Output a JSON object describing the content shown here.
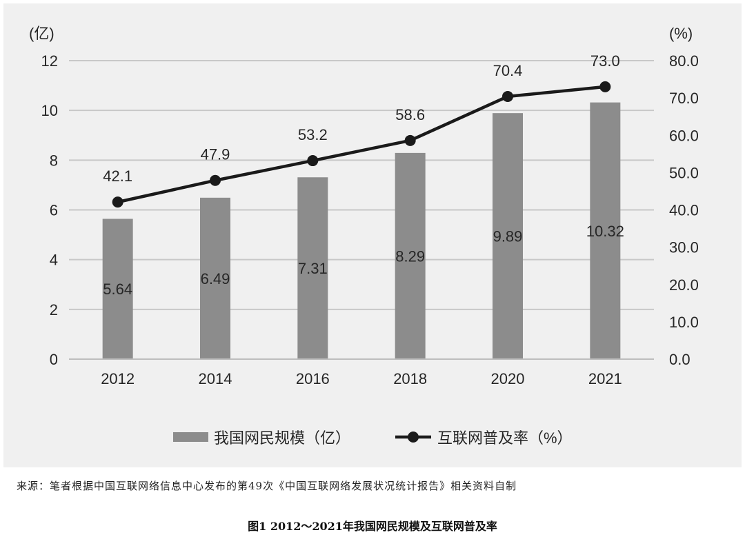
{
  "chart_data": {
    "type": "bar",
    "categories": [
      "2012",
      "2014",
      "2016",
      "2018",
      "2020",
      "2021"
    ],
    "series": [
      {
        "name": "我国网民规模（亿）",
        "type": "bar",
        "axis": "left",
        "values": [
          5.64,
          6.49,
          7.31,
          8.29,
          9.89,
          10.32
        ],
        "labels": [
          "5.64",
          "6.49",
          "7.31",
          "8.29",
          "9.89",
          "10.32"
        ]
      },
      {
        "name": "互联网普及率（%）",
        "type": "line",
        "axis": "right",
        "values": [
          42.1,
          47.9,
          53.2,
          58.6,
          70.4,
          73.0
        ],
        "labels": [
          "42.1",
          "47.9",
          "53.2",
          "58.6",
          "70.4",
          "73.0"
        ]
      }
    ],
    "y_left": {
      "unit": "(亿)",
      "range": [
        0,
        12
      ],
      "ticks": [
        "0",
        "2",
        "4",
        "6",
        "8",
        "10",
        "12"
      ]
    },
    "y_right": {
      "unit": "(%)",
      "range": [
        0,
        80
      ],
      "ticks": [
        "0.0",
        "10.0",
        "20.0",
        "30.0",
        "40.0",
        "50.0",
        "60.0",
        "70.0",
        "80.0"
      ]
    },
    "grid": true,
    "legend_position": "bottom",
    "colors": {
      "bar": "#8c8c8c",
      "line": "#1a1a1a",
      "plot_background": "#f0f0f0",
      "grid": "#c8c8c8"
    }
  },
  "source_note": "来源：笔者根据中国互联网络信息中心发布的第49次《中国互联网络发展状况统计报告》相关资料自制",
  "caption": "图1 2012～2021年我国网民规模及互联网普及率"
}
